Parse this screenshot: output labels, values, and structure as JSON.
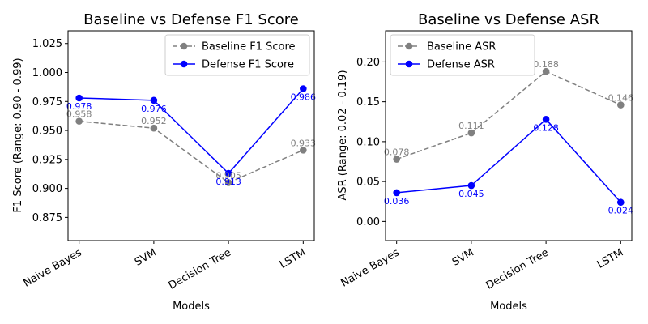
{
  "chart_data": [
    {
      "type": "line",
      "title": "Baseline vs Defense F1 Score",
      "xlabel": "Models",
      "ylabel": "F1 Score (Range: 0.90 - 0.99)",
      "categories": [
        "Naive Bayes",
        "SVM",
        "Decision Tree",
        "LSTM"
      ],
      "ylim": [
        0.855,
        1.036
      ],
      "yticks": [
        "0.875",
        "0.900",
        "0.925",
        "0.950",
        "0.975",
        "1.000",
        "1.025"
      ],
      "legend_position": "upper-right",
      "grid": false,
      "series": [
        {
          "name": "Baseline F1 Score",
          "values": [
            0.958,
            0.952,
            0.905,
            0.933
          ],
          "labels": [
            "0.958",
            "0.952",
            "0.905",
            "0.933"
          ],
          "color": "#808080",
          "style": "dashed",
          "label_position": "above"
        },
        {
          "name": "Defense F1 Score",
          "values": [
            0.978,
            0.976,
            0.913,
            0.986
          ],
          "labels": [
            "0.978",
            "0.976",
            "0.913",
            "0.986"
          ],
          "color": "#0000ff",
          "style": "solid",
          "label_position": "below"
        }
      ]
    },
    {
      "type": "line",
      "title": "Baseline vs Defense ASR",
      "xlabel": "Models",
      "ylabel": "ASR (Range: 0.02 - 0.19)",
      "categories": [
        "Naive Bayes",
        "SVM",
        "Decision Tree",
        "LSTM"
      ],
      "ylim": [
        -0.024,
        0.239
      ],
      "yticks": [
        "0.00",
        "0.05",
        "0.10",
        "0.15",
        "0.20"
      ],
      "legend_position": "upper-left",
      "grid": false,
      "series": [
        {
          "name": "Baseline ASR",
          "values": [
            0.078,
            0.111,
            0.188,
            0.146
          ],
          "labels": [
            "0.078",
            "0.111",
            "0.188",
            "0.146"
          ],
          "color": "#808080",
          "style": "dashed",
          "label_position": "above"
        },
        {
          "name": "Defense ASR",
          "values": [
            0.036,
            0.045,
            0.128,
            0.024
          ],
          "labels": [
            "0.036",
            "0.045",
            "0.128",
            "0.024"
          ],
          "color": "#0000ff",
          "style": "solid",
          "label_position": "below"
        }
      ]
    }
  ]
}
